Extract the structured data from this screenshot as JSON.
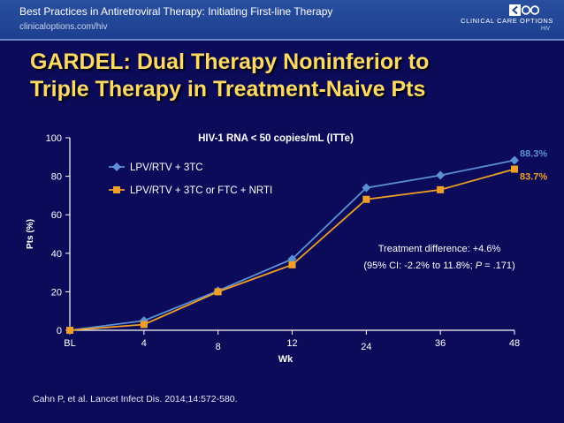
{
  "header": {
    "series_title": "Best Practices in Antiretroviral Therapy: Initiating First-line Therapy",
    "url": "clinicaloptions.com/hiv",
    "logo_text": "CLINICAL CARE OPTIONS",
    "logo_sub": "HIV"
  },
  "slide": {
    "title_line1": "GARDEL: Dual Therapy Noninferior to",
    "title_line2": "Triple Therapy in Treatment-Naive Pts",
    "citation": "Cahn P, et al. Lancet Infect Dis. 2014;14:572-580."
  },
  "chart_data": {
    "type": "line",
    "title": "HIV-1 RNA < 50 copies/mL (ITTe)",
    "xlabel": "Wk",
    "ylabel": "Pts (%)",
    "categories": [
      "BL",
      "4",
      "8",
      "12",
      "24",
      "36",
      "48"
    ],
    "ylim": [
      0,
      100
    ],
    "yticks": [
      0,
      20,
      40,
      60,
      80,
      100
    ],
    "grid": false,
    "legend_position": "top-left",
    "series": [
      {
        "name": "LPV/RTV + 3TC",
        "color": "#5b8fd6",
        "marker": "diamond",
        "values": [
          0,
          5,
          20.5,
          37,
          74,
          80.5,
          88.3
        ],
        "end_label": "88.3%"
      },
      {
        "name": "LPV/RTV + 3TC or FTC + NRTI",
        "color": "#f0a024",
        "marker": "square",
        "values": [
          0,
          3,
          20,
          34,
          68,
          73,
          83.7
        ],
        "end_label": "83.7%"
      }
    ],
    "annotation_line1": "Treatment difference: +4.6%",
    "annotation_line2_prefix": "(95% CI: -2.2% to 11.8%; ",
    "annotation_p": "P",
    "annotation_line2_suffix": " = .171)"
  }
}
